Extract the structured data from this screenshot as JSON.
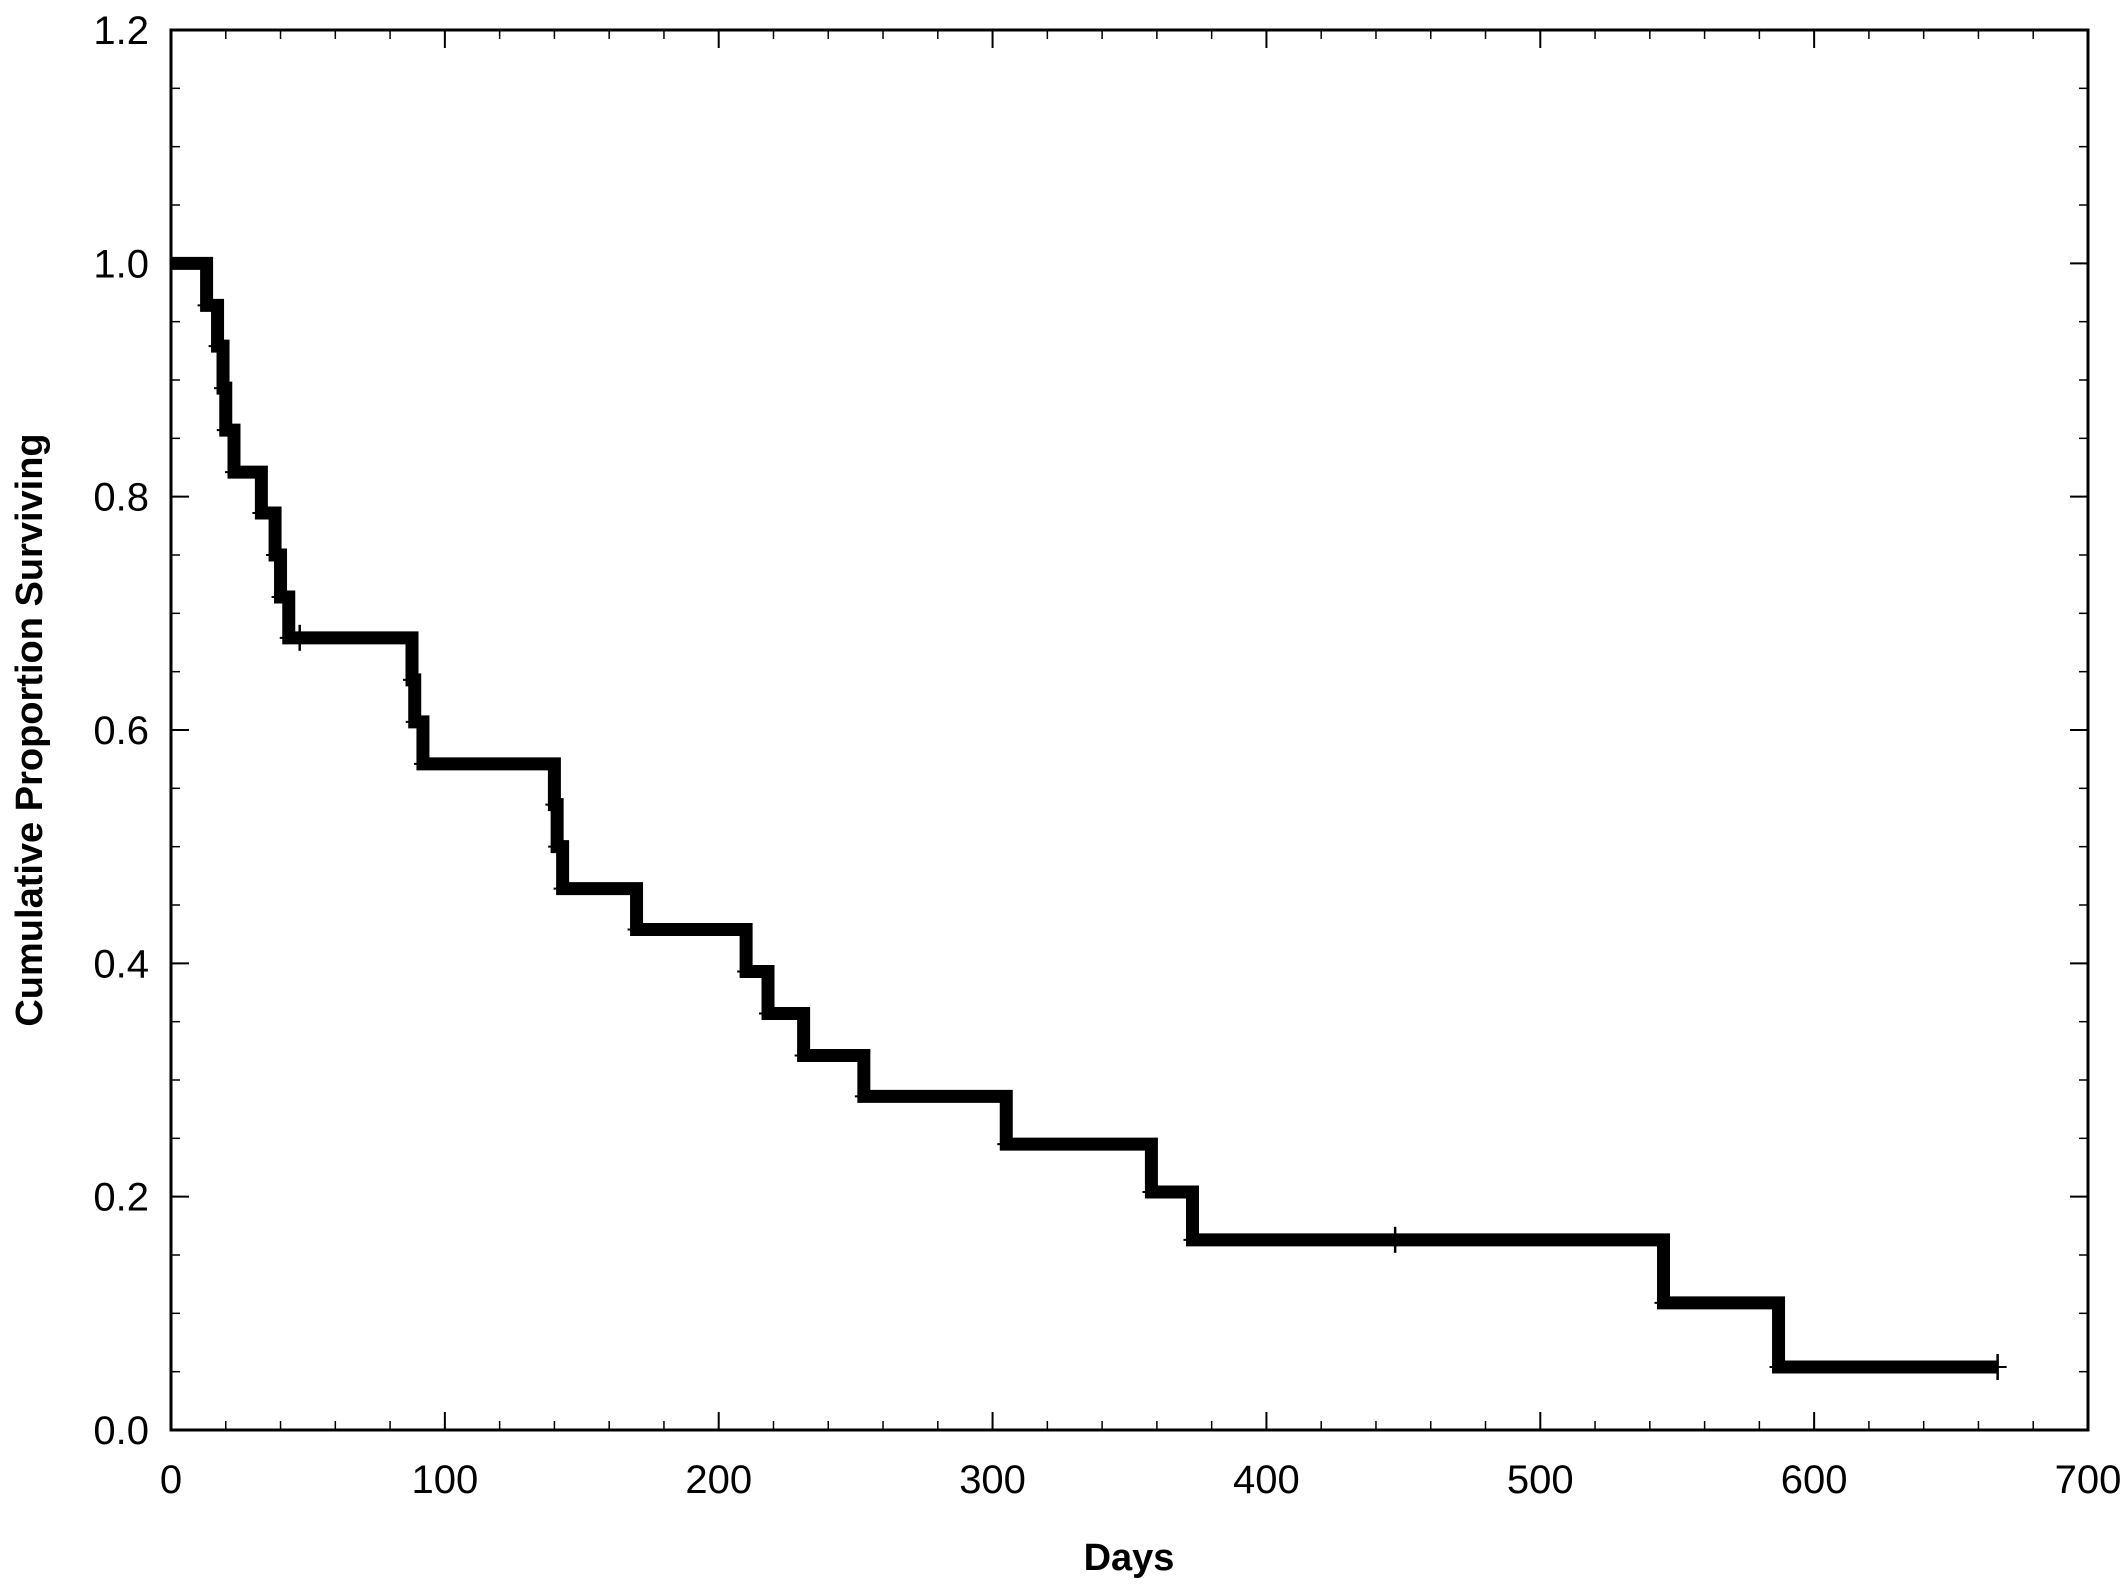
{
  "chart_data": {
    "type": "line",
    "title": "",
    "xlabel": "Days",
    "ylabel": "Cumulative Proportion Surviving",
    "xlim": [
      0,
      700
    ],
    "ylim": [
      0,
      1.2
    ],
    "x_ticks": [
      0,
      100,
      200,
      300,
      400,
      500,
      600,
      700
    ],
    "y_ticks": [
      0.0,
      0.2,
      0.4,
      0.6,
      0.8,
      1.0,
      1.2
    ],
    "x_tick_labels": [
      "0",
      "100",
      "200",
      "300",
      "400",
      "500",
      "600",
      "700"
    ],
    "y_tick_labels": [
      "0.0",
      "0.2",
      "0.4",
      "0.6",
      "0.8",
      "1.0",
      "1.2"
    ],
    "grid": false,
    "line_color": "#000000",
    "series": [
      {
        "step": "post",
        "x": [
          0,
          13,
          17,
          19,
          20,
          23,
          33,
          38,
          40,
          43,
          47,
          88,
          89,
          92,
          140,
          141,
          143,
          170,
          210,
          218,
          231,
          253,
          305,
          358,
          373,
          545,
          587,
          667
        ],
        "y": [
          1.0,
          0.964,
          0.929,
          0.893,
          0.857,
          0.821,
          0.786,
          0.75,
          0.714,
          0.679,
          0.679,
          0.643,
          0.607,
          0.571,
          0.536,
          0.5,
          0.464,
          0.429,
          0.393,
          0.357,
          0.321,
          0.286,
          0.245,
          0.204,
          0.163,
          0.109,
          0.054,
          0.054
        ]
      }
    ],
    "censored": [
      {
        "x": 47,
        "y": 0.679
      },
      {
        "x": 447,
        "y": 0.163
      },
      {
        "x": 667,
        "y": 0.054
      }
    ]
  }
}
